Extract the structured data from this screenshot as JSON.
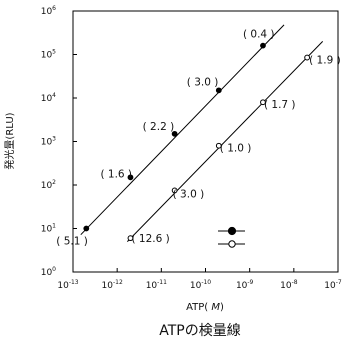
{
  "chart_data": {
    "type": "scatter",
    "title": "ATPの検量線",
    "xlabel_base": "ATP(",
    "xlabel_unit": " M",
    "xlabel_end": ")",
    "ylabel": "発光量(RLU)",
    "x_scale": "log",
    "y_scale": "log",
    "xlim": [
      1e-13,
      1e-07
    ],
    "ylim": [
      1,
      1000000
    ],
    "grid": false,
    "legend": "bottom-right",
    "x_ticks": [
      {
        "base": "10",
        "exp": "-13",
        "value": 1e-13
      },
      {
        "base": "10",
        "exp": "-12",
        "value": 1e-12
      },
      {
        "base": "10",
        "exp": "-11",
        "value": 1e-11
      },
      {
        "base": "10",
        "exp": "-10",
        "value": 1e-10
      },
      {
        "base": "10",
        "exp": "-9",
        "value": 1e-09
      },
      {
        "base": "10",
        "exp": "-8",
        "value": 1e-08
      },
      {
        "base": "10",
        "exp": "-7",
        "value": 1e-07
      }
    ],
    "y_ticks": [
      {
        "base": "10",
        "exp": "0",
        "value": 1
      },
      {
        "base": "10",
        "exp": "1",
        "value": 10
      },
      {
        "base": "10",
        "exp": "2",
        "value": 100
      },
      {
        "base": "10",
        "exp": "3",
        "value": 1000
      },
      {
        "base": "10",
        "exp": "4",
        "value": 10000
      },
      {
        "base": "10",
        "exp": "5",
        "value": 100000
      },
      {
        "base": "10",
        "exp": "6",
        "value": 1000000
      }
    ],
    "series": [
      {
        "marker": "filled",
        "color": "#000000",
        "points": [
          {
            "x": 2e-13,
            "y": 10,
            "label": "( 5.1 )"
          },
          {
            "x": 2e-12,
            "y": 150,
            "label": "( 1.6 )"
          },
          {
            "x": 2e-11,
            "y": 1500,
            "label": "( 2.2 )"
          },
          {
            "x": 2e-10,
            "y": 15000,
            "label": "( 3.0 )"
          },
          {
            "x": 2e-09,
            "y": 160000,
            "label": "( 0.4 )"
          }
        ],
        "fit_line": {
          "x": [
            1.5e-13,
            6e-09
          ],
          "y": [
            7.2,
            480000
          ]
        }
      },
      {
        "marker": "open",
        "color": "#000000",
        "points": [
          {
            "x": 2e-12,
            "y": 6,
            "label": "( 12.6 )"
          },
          {
            "x": 2e-11,
            "y": 75,
            "label": "( 3.0 )"
          },
          {
            "x": 2e-10,
            "y": 800,
            "label": "( 1.0 )"
          },
          {
            "x": 2e-09,
            "y": 8000,
            "label": "( 1.7 )"
          },
          {
            "x": 2e-08,
            "y": 85000,
            "label": "( 1.9 )"
          }
        ],
        "fit_line": {
          "x": [
            1.7e-12,
            4.5e-08
          ],
          "y": [
            5,
            200000
          ]
        }
      }
    ]
  }
}
